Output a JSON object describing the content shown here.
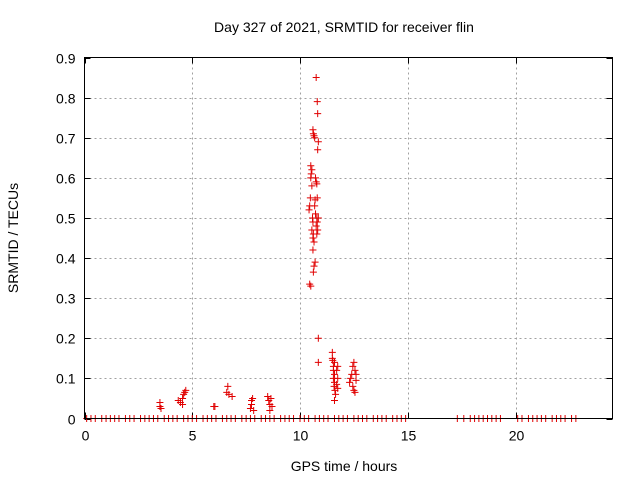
{
  "chart_data": {
    "type": "scatter",
    "title": "Day 327 of 2021, SRMTID for receiver flin",
    "xlabel": "GPS time / hours",
    "ylabel": "SRMTID / TECUs",
    "xlim": [
      0,
      24.5
    ],
    "ylim": [
      0,
      0.9
    ],
    "xticks": [
      0,
      5,
      10,
      15,
      20
    ],
    "xtick_labels": [
      "0",
      "5",
      "10",
      "15",
      "20"
    ],
    "yticks": [
      0,
      0.1,
      0.2,
      0.3,
      0.4,
      0.5,
      0.6,
      0.7,
      0.8,
      0.9
    ],
    "ytick_labels": [
      "0",
      "0.1",
      "0.2",
      "0.3",
      "0.4",
      "0.5",
      "0.6",
      "0.7",
      "0.8",
      "0.9"
    ],
    "grid": true,
    "marker": "plus",
    "series": [
      {
        "name": "SRMTID",
        "color": "#e00000",
        "points": [
          [
            0.1,
            0
          ],
          [
            0.3,
            0
          ],
          [
            0.5,
            0
          ],
          [
            0.8,
            0
          ],
          [
            1.0,
            0
          ],
          [
            1.2,
            0
          ],
          [
            1.4,
            0
          ],
          [
            1.6,
            0
          ],
          [
            1.9,
            0
          ],
          [
            2.1,
            0
          ],
          [
            2.3,
            0
          ],
          [
            2.6,
            0
          ],
          [
            2.8,
            0
          ],
          [
            3.0,
            0
          ],
          [
            3.2,
            0
          ],
          [
            3.4,
            0
          ],
          [
            3.7,
            0
          ],
          [
            3.9,
            0
          ],
          [
            4.1,
            0
          ],
          [
            4.3,
            0
          ],
          [
            4.6,
            0
          ],
          [
            4.8,
            0
          ],
          [
            5.0,
            0
          ],
          [
            5.2,
            0
          ],
          [
            5.5,
            0
          ],
          [
            5.7,
            0
          ],
          [
            5.9,
            0
          ],
          [
            6.1,
            0
          ],
          [
            6.4,
            0
          ],
          [
            6.6,
            0
          ],
          [
            6.8,
            0
          ],
          [
            7.0,
            0
          ],
          [
            7.3,
            0
          ],
          [
            7.5,
            0
          ],
          [
            7.7,
            0
          ],
          [
            7.9,
            0
          ],
          [
            8.2,
            0
          ],
          [
            8.4,
            0
          ],
          [
            8.6,
            0
          ],
          [
            8.8,
            0
          ],
          [
            9.1,
            0
          ],
          [
            9.3,
            0
          ],
          [
            9.5,
            0
          ],
          [
            9.7,
            0
          ],
          [
            10.0,
            0
          ],
          [
            10.2,
            0
          ],
          [
            10.4,
            0
          ],
          [
            10.7,
            0
          ],
          [
            10.9,
            0
          ],
          [
            11.1,
            0
          ],
          [
            11.3,
            0
          ],
          [
            11.6,
            0
          ],
          [
            11.8,
            0
          ],
          [
            12.0,
            0
          ],
          [
            12.2,
            0
          ],
          [
            12.5,
            0
          ],
          [
            12.7,
            0
          ],
          [
            12.9,
            0
          ],
          [
            13.1,
            0
          ],
          [
            13.4,
            0
          ],
          [
            13.6,
            0
          ],
          [
            13.8,
            0
          ],
          [
            14.0,
            0
          ],
          [
            14.3,
            0
          ],
          [
            14.5,
            0
          ],
          [
            14.7,
            0
          ],
          [
            14.9,
            0
          ],
          [
            17.3,
            0
          ],
          [
            17.6,
            0
          ],
          [
            17.9,
            0
          ],
          [
            18.1,
            0
          ],
          [
            18.3,
            0
          ],
          [
            18.5,
            0
          ],
          [
            18.7,
            0
          ],
          [
            18.9,
            0
          ],
          [
            19.1,
            0
          ],
          [
            19.3,
            0
          ],
          [
            20.1,
            0
          ],
          [
            20.3,
            0
          ],
          [
            20.6,
            0
          ],
          [
            20.8,
            0
          ],
          [
            21.0,
            0
          ],
          [
            21.2,
            0
          ],
          [
            21.4,
            0
          ],
          [
            21.7,
            0
          ],
          [
            21.9,
            0
          ],
          [
            22.1,
            0
          ],
          [
            22.3,
            0
          ],
          [
            22.6,
            0
          ],
          [
            22.8,
            0
          ],
          [
            3.5,
            0.03
          ],
          [
            3.5,
            0.04
          ],
          [
            3.55,
            0.025
          ],
          [
            4.35,
            0.045
          ],
          [
            4.45,
            0.04
          ],
          [
            4.55,
            0.05
          ],
          [
            4.6,
            0.06
          ],
          [
            4.65,
            0.065
          ],
          [
            4.7,
            0.07
          ],
          [
            4.55,
            0.035
          ],
          [
            6.0,
            0.03
          ],
          [
            6.05,
            0.03
          ],
          [
            6.6,
            0.065
          ],
          [
            6.65,
            0.08
          ],
          [
            6.7,
            0.06
          ],
          [
            6.85,
            0.055
          ],
          [
            7.7,
            0.025
          ],
          [
            7.75,
            0.035
          ],
          [
            7.75,
            0.045
          ],
          [
            7.8,
            0.05
          ],
          [
            7.85,
            0.02
          ],
          [
            8.5,
            0.055
          ],
          [
            8.55,
            0.045
          ],
          [
            8.6,
            0.035
          ],
          [
            8.65,
            0.05
          ],
          [
            8.7,
            0.03
          ],
          [
            8.6,
            0.02
          ],
          [
            10.45,
            0.335
          ],
          [
            10.5,
            0.33
          ],
          [
            10.42,
            0.52
          ],
          [
            10.45,
            0.53
          ],
          [
            10.48,
            0.55
          ],
          [
            10.5,
            0.6
          ],
          [
            10.52,
            0.61
          ],
          [
            10.55,
            0.62
          ],
          [
            10.5,
            0.63
          ],
          [
            10.55,
            0.58
          ],
          [
            10.58,
            0.5
          ],
          [
            10.6,
            0.49
          ],
          [
            10.55,
            0.47
          ],
          [
            10.62,
            0.46
          ],
          [
            10.6,
            0.45
          ],
          [
            10.65,
            0.44
          ],
          [
            10.6,
            0.72
          ],
          [
            10.62,
            0.71
          ],
          [
            10.65,
            0.705
          ],
          [
            10.68,
            0.7
          ],
          [
            10.6,
            0.42
          ],
          [
            10.65,
            0.38
          ],
          [
            10.7,
            0.39
          ],
          [
            10.62,
            0.365
          ],
          [
            10.68,
            0.53
          ],
          [
            10.7,
            0.545
          ],
          [
            10.72,
            0.51
          ],
          [
            10.75,
            0.48
          ],
          [
            10.78,
            0.5
          ],
          [
            10.8,
            0.49
          ],
          [
            10.75,
            0.59
          ],
          [
            10.78,
            0.585
          ],
          [
            10.8,
            0.55
          ],
          [
            10.72,
            0.6
          ],
          [
            10.78,
            0.46
          ],
          [
            10.82,
            0.47
          ],
          [
            10.85,
            0.5
          ],
          [
            10.75,
            0.85
          ],
          [
            10.8,
            0.79
          ],
          [
            10.82,
            0.76
          ],
          [
            10.85,
            0.69
          ],
          [
            10.82,
            0.67
          ],
          [
            10.85,
            0.2
          ],
          [
            10.85,
            0.14
          ],
          [
            11.5,
            0.165
          ],
          [
            11.5,
            0.15
          ],
          [
            11.52,
            0.145
          ],
          [
            11.55,
            0.13
          ],
          [
            11.55,
            0.12
          ],
          [
            11.6,
            0.11
          ],
          [
            11.55,
            0.1
          ],
          [
            11.6,
            0.09
          ],
          [
            11.58,
            0.08
          ],
          [
            11.62,
            0.07
          ],
          [
            11.65,
            0.06
          ],
          [
            11.6,
            0.045
          ],
          [
            11.7,
            0.12
          ],
          [
            11.75,
            0.13
          ],
          [
            11.75,
            0.1
          ],
          [
            11.7,
            0.085
          ],
          [
            11.75,
            0.075
          ],
          [
            11.6,
            0.14
          ],
          [
            12.3,
            0.09
          ],
          [
            12.35,
            0.1
          ],
          [
            12.4,
            0.11
          ],
          [
            12.45,
            0.08
          ],
          [
            12.5,
            0.07
          ],
          [
            12.5,
            0.14
          ],
          [
            12.55,
            0.12
          ],
          [
            12.6,
            0.11
          ],
          [
            12.6,
            0.095
          ],
          [
            12.55,
            0.065
          ],
          [
            12.45,
            0.13
          ]
        ]
      }
    ]
  }
}
